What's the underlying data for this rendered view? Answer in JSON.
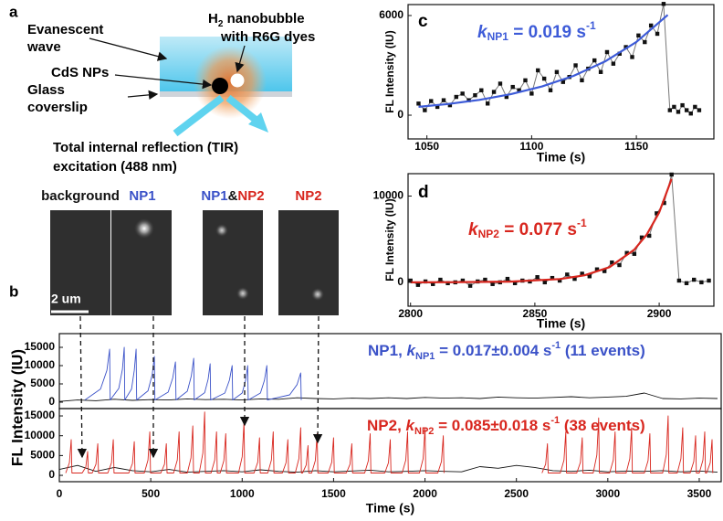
{
  "panel_labels": [
    "a",
    "b",
    "c",
    "d"
  ],
  "diagram": {
    "evanescent_wave": [
      "Evanescent",
      "wave"
    ],
    "nanobubble": {
      "prefix": "H",
      "subscript": "2",
      "text": " nanobubble",
      "line2": "with R6G dyes"
    },
    "nps": "CdS NPs",
    "glass": [
      "Glass",
      "coverslip"
    ],
    "tir": [
      "Total internal reflection (TIR)",
      "excitation (488 nm)"
    ]
  },
  "images": [
    {
      "label": [
        {
          "text": "background",
          "color": "#111111"
        }
      ]
    },
    {
      "label": [
        {
          "text": "NP1",
          "color": "#3b52c8"
        }
      ]
    },
    {
      "label": [
        {
          "text": "NP1",
          "color": "#3b52c8"
        },
        {
          "text": "&",
          "color": "#111111"
        },
        {
          "text": "NP2",
          "color": "#d8261e"
        }
      ]
    },
    {
      "label": [
        {
          "text": "NP2",
          "color": "#d8261e"
        }
      ]
    }
  ],
  "scale_bar": "2 um",
  "chart_data": [
    {
      "type": "line",
      "xlabel": "Time (s)",
      "ylabel": "FL Intensity (IU)",
      "xlim": [
        1041,
        1187
      ],
      "ylim": [
        -1430,
        6660
      ],
      "xticks": [
        1050,
        1100,
        1150
      ],
      "yticks": [
        0,
        6000
      ],
      "annotation": {
        "symbol": "k",
        "subscript": "NP1",
        "text": " = 0.019 s",
        "superscript": "-1"
      },
      "series": [
        {
          "color": "#777777",
          "marker_color": "#111111",
          "markers": true,
          "x": [
            1046,
            1049,
            1052,
            1055,
            1058,
            1061,
            1064,
            1067,
            1070,
            1073,
            1076,
            1079,
            1082,
            1085,
            1088,
            1091,
            1094,
            1097,
            1100,
            1103,
            1106,
            1109,
            1112,
            1115,
            1118,
            1121,
            1124,
            1127,
            1130,
            1133,
            1136,
            1139,
            1142,
            1145,
            1148,
            1151,
            1154,
            1157,
            1160,
            1163,
            1166,
            1168,
            1170,
            1172,
            1174,
            1176,
            1178,
            1180
          ],
          "values": [
            700,
            300,
            850,
            500,
            900,
            600,
            1100,
            1300,
            900,
            1200,
            1500,
            700,
            1400,
            1900,
            1100,
            1700,
            1500,
            2100,
            1300,
            2700,
            2200,
            1500,
            2600,
            2000,
            2300,
            3000,
            2100,
            2800,
            3300,
            2600,
            3800,
            3100,
            3700,
            4100,
            3500,
            4800,
            4400,
            5400,
            4900,
            6700,
            300,
            500,
            200,
            600,
            300,
            100,
            500,
            300
          ]
        },
        {
          "color": "#3d5bd8",
          "markers": false,
          "x": [
            1046,
            1060,
            1075,
            1090,
            1105,
            1120,
            1135,
            1150,
            1165
          ],
          "values": [
            500,
            672,
            918,
            1260,
            1730,
            2370,
            3230,
            4410,
            6040
          ]
        }
      ]
    },
    {
      "type": "line",
      "xlabel": "Time (s)",
      "ylabel": "FL Intensity (IU)",
      "xlim": [
        2799,
        2922
      ],
      "ylim": [
        -2770,
        12600
      ],
      "xticks": [
        2800,
        2850,
        2900
      ],
      "yticks": [
        0,
        10000
      ],
      "annotation": {
        "symbol": "k",
        "subscript": "NP2",
        "text": " = 0.077 s",
        "superscript": "-1"
      },
      "series": [
        {
          "color": "#777777",
          "marker_color": "#111111",
          "markers": true,
          "x": [
            2800,
            2803,
            2806,
            2809,
            2812,
            2815,
            2818,
            2821,
            2824,
            2827,
            2830,
            2833,
            2836,
            2839,
            2842,
            2845,
            2848,
            2851,
            2854,
            2857,
            2860,
            2863,
            2866,
            2869,
            2872,
            2875,
            2878,
            2881,
            2884,
            2887,
            2890,
            2893,
            2896,
            2899,
            2902,
            2905,
            2908,
            2911,
            2914,
            2917,
            2920
          ],
          "values": [
            200,
            -300,
            100,
            -200,
            300,
            -100,
            0,
            200,
            -400,
            100,
            300,
            -200,
            0,
            400,
            -100,
            200,
            100,
            600,
            0,
            500,
            200,
            900,
            400,
            1000,
            700,
            1500,
            1300,
            2300,
            2000,
            3400,
            3300,
            5200,
            5400,
            8000,
            9200,
            12500,
            200,
            -100,
            300,
            0,
            200
          ]
        },
        {
          "color": "#d8261e",
          "markers": false,
          "x": [
            2800,
            2820,
            2840,
            2860,
            2870,
            2880,
            2890,
            2895,
            2900,
            2905
          ],
          "values": [
            0,
            17,
            79,
            375,
            813,
            1760,
            3780,
            5540,
            8110,
            12000
          ]
        }
      ]
    },
    {
      "type": "line",
      "ylabel": "FL Intensity (IU)",
      "xlim": [
        0,
        3620
      ],
      "ylim": [
        -1750,
        18750
      ],
      "yticks": [
        0,
        5000,
        10000,
        15000
      ],
      "annotation": {
        "prefix": "NP1, ",
        "symbol": "k",
        "subscript": "NP1",
        "text": " = 0.017±0.004 s",
        "superscript": "-1",
        "suffix": " (11 events)"
      },
      "series": [
        {
          "color": "#111111",
          "markers": false,
          "x": [
            0,
            100,
            200,
            300,
            400,
            500,
            600,
            700,
            800,
            900,
            1000,
            1100,
            1200,
            1300,
            1400,
            1500,
            1600,
            1700,
            1800,
            1900,
            2000,
            2100,
            2200,
            2300,
            2400,
            2500,
            2600,
            2700,
            2800,
            2900,
            3000,
            3100,
            3200,
            3300,
            3400,
            3500,
            3600
          ],
          "values": [
            200,
            600,
            400,
            800,
            500,
            700,
            600,
            900,
            700,
            800,
            600,
            900,
            800,
            1200,
            1000,
            900,
            1100,
            1000,
            1200,
            1000,
            1300,
            1100,
            1200,
            1000,
            1400,
            1200,
            1100,
            1300,
            1500,
            1200,
            1400,
            1600,
            2500,
            1000,
            900,
            1100,
            1000
          ]
        },
        {
          "color": "#3b52c8",
          "markers": false,
          "x": [
            140,
            225,
            260,
            275,
            278,
            325,
            345,
            355,
            358,
            395,
            410,
            420,
            423,
            485,
            508,
            520,
            523,
            595,
            620,
            635,
            638,
            700,
            722,
            735,
            738,
            795,
            814,
            825,
            828,
            905,
            930,
            945,
            948,
            1000,
            1019,
            1030,
            1033,
            1100,
            1122,
            1135,
            1138,
            1260,
            1300,
            1320,
            1323
          ],
          "values": [
            600,
            3600,
            8700,
            14500,
            600,
            3750,
            9000,
            15000,
            600,
            3600,
            8700,
            14500,
            600,
            3100,
            7500,
            12500,
            600,
            2750,
            6600,
            11000,
            600,
            3000,
            7200,
            12000,
            600,
            2600,
            6300,
            10500,
            600,
            2500,
            6000,
            10000,
            600,
            2500,
            6000,
            10000,
            600,
            2500,
            6000,
            10000,
            600,
            2000,
            4800,
            8000,
            600
          ]
        }
      ]
    },
    {
      "type": "line",
      "xlabel": "Time (s)",
      "xlim": [
        0,
        3620
      ],
      "ylim": [
        -1600,
        16850
      ],
      "xticks": [
        0,
        500,
        1000,
        1500,
        2000,
        2500,
        3000,
        3500
      ],
      "yticks": [
        0,
        5000,
        10000,
        15000
      ],
      "annotation": {
        "prefix": "NP2, ",
        "symbol": "k",
        "subscript": "NP2",
        "text": " = 0.085±0.018 s",
        "superscript": "-1",
        "suffix": " (38 events)"
      },
      "series": [
        {
          "color": "#111111",
          "markers": false,
          "x": [
            0,
            100,
            200,
            300,
            400,
            500,
            600,
            700,
            800,
            900,
            1000,
            1100,
            1200,
            1300,
            1400,
            1500,
            1600,
            1700,
            1800,
            1900,
            2000,
            2100,
            2200,
            2300,
            2400,
            2500,
            2600,
            2700,
            2800,
            2900,
            3000,
            3100,
            3200,
            3300,
            3400,
            3500,
            3600
          ],
          "values": [
            1500,
            2500,
            1000,
            2000,
            1200,
            900,
            1500,
            800,
            1000,
            1200,
            900,
            1400,
            1000,
            800,
            1200,
            900,
            1100,
            1300,
            900,
            1000,
            1200,
            1000,
            900,
            2200,
            1800,
            2500,
            2000,
            1200,
            1000,
            1300,
            900,
            1100,
            1000,
            1200,
            900,
            1100,
            800
          ]
        },
        {
          "color": "#d8261e",
          "markers": false,
          "x": [
            35,
            55,
            65,
            69,
            125,
            145,
            155,
            159,
            180,
            200,
            210,
            214,
            265,
            285,
            295,
            299,
            380,
            400,
            410,
            414,
            465,
            485,
            495,
            499,
            555,
            575,
            585,
            589,
            625,
            645,
            655,
            659,
            700,
            720,
            730,
            734,
            765,
            785,
            795,
            799,
            830,
            850,
            860,
            864,
            880,
            900,
            910,
            914,
            980,
            1000,
            1010,
            1014,
            1065,
            1085,
            1095,
            1099,
            1140,
            1160,
            1170,
            1174,
            1220,
            1240,
            1250,
            1254,
            1290,
            1310,
            1320,
            1324,
            1330,
            1350,
            1360,
            1364,
            1380,
            1400,
            1410,
            1414,
            1470,
            1490,
            1500,
            1504,
            1570,
            1590,
            1600,
            1604,
            1670,
            1690,
            1700,
            1704,
            1780,
            1800,
            1810,
            1814,
            1875,
            1895,
            1905,
            1909,
            1970,
            1990,
            2000,
            2004,
            2070,
            2090,
            2100,
            2104,
            2380,
            2640,
            2660,
            2670,
            2674,
            2740,
            2760,
            2770,
            2774,
            2830,
            2850,
            2860,
            2864,
            2920,
            2940,
            2950,
            2954,
            3010,
            3030,
            3040,
            3044,
            3100,
            3120,
            3130,
            3134,
            3200,
            3220,
            3230,
            3234,
            3300,
            3320,
            3330,
            3334,
            3380,
            3400,
            3410,
            3414,
            3450,
            3470,
            3480,
            3484,
            3500,
            3520,
            3530,
            3534,
            3540,
            3560,
            3570,
            3574
          ],
          "values": [
            600,
            3150,
            9000,
            600,
            600,
            2100,
            6000,
            600,
            600,
            2800,
            8000,
            600,
            600,
            3150,
            9000,
            600,
            600,
            3000,
            8500,
            600,
            600,
            3850,
            11000,
            600,
            600,
            2800,
            8000,
            600,
            600,
            3850,
            11000,
            600,
            600,
            4400,
            12500,
            600,
            600,
            5600,
            16000,
            600,
            600,
            3850,
            11000,
            600,
            600,
            3700,
            10500,
            600,
            600,
            4700,
            13500,
            600,
            600,
            3300,
            9500,
            600,
            600,
            3850,
            11000,
            600,
            600,
            3150,
            9000,
            600,
            600,
            4200,
            12000,
            600,
            600,
            2600,
            7500,
            600,
            600,
            3700,
            10500,
            600,
            600,
            3300,
            9500,
            600,
            600,
            2800,
            8000,
            600,
            600,
            3700,
            10500,
            600,
            600,
            3150,
            9000,
            600,
            600,
            3850,
            11000,
            600,
            600,
            4200,
            12000,
            600,
            600,
            3500,
            10000,
            600,
            null,
            600,
            2800,
            8000,
            600,
            600,
            3850,
            11000,
            600,
            600,
            3300,
            9500,
            600,
            600,
            5100,
            14500,
            600,
            600,
            3850,
            11000,
            600,
            600,
            4200,
            12000,
            600,
            600,
            3700,
            10500,
            600,
            600,
            5250,
            15000,
            600,
            600,
            4200,
            12000,
            600,
            600,
            3500,
            10000,
            600,
            600,
            3850,
            11000,
            600,
            600,
            3150,
            9000,
            600
          ]
        }
      ]
    }
  ]
}
